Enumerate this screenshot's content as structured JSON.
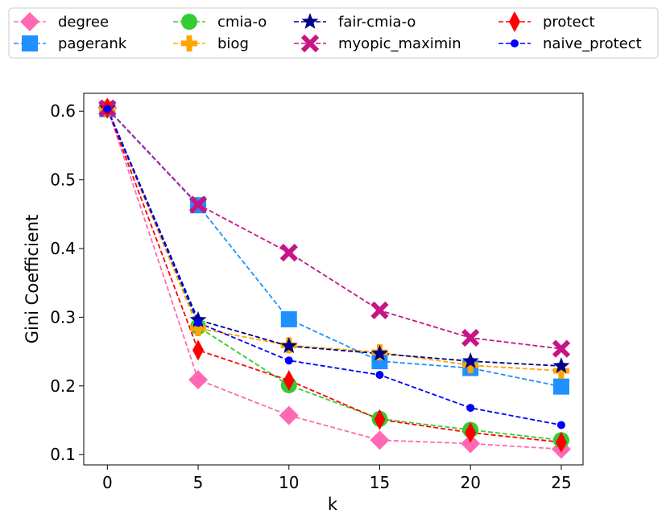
{
  "chart_data": {
    "type": "line",
    "xlabel": "k",
    "ylabel": "Gini Coefficient",
    "x": [
      0,
      5,
      10,
      15,
      20,
      25
    ],
    "xticks": [
      "0",
      "5",
      "10",
      "15",
      "20",
      "25"
    ],
    "yticks": [
      "0.1",
      "0.2",
      "0.3",
      "0.4",
      "0.5",
      "0.6"
    ],
    "xlim": [
      -1.3,
      26.2
    ],
    "ylim": [
      0.085,
      0.626
    ],
    "grid": false,
    "legend_position": "top, above plot, 4 columns",
    "series": [
      {
        "name": "degree",
        "color": "#ff69b4",
        "marker": "diamond",
        "values": [
          0.605,
          0.209,
          0.157,
          0.121,
          0.116,
          0.108
        ]
      },
      {
        "name": "pagerank",
        "color": "#1e90ff",
        "marker": "square",
        "values": [
          0.603,
          0.463,
          0.297,
          0.236,
          0.226,
          0.199
        ]
      },
      {
        "name": "cmia-o",
        "color": "#32cd32",
        "marker": "circle",
        "values": [
          0.604,
          0.286,
          0.201,
          0.152,
          0.136,
          0.121
        ]
      },
      {
        "name": "biog",
        "color": "#ffa500",
        "marker": "plus",
        "values": [
          0.604,
          0.284,
          0.259,
          0.249,
          0.23,
          0.222
        ]
      },
      {
        "name": "fair-cmia-o",
        "color": "#00008b",
        "marker": "star",
        "values": [
          0.604,
          0.296,
          0.258,
          0.247,
          0.236,
          0.229
        ]
      },
      {
        "name": "myopic_maximin",
        "color": "#c71585",
        "marker": "x",
        "values": [
          0.604,
          0.464,
          0.394,
          0.31,
          0.27,
          0.254
        ]
      },
      {
        "name": "protect",
        "color": "#ff0000",
        "marker": "thin-diamond",
        "values": [
          0.604,
          0.252,
          0.208,
          0.151,
          0.132,
          0.118
        ]
      },
      {
        "name": "naive_protect",
        "color": "#0000ff",
        "marker": "dot",
        "values": [
          0.603,
          0.292,
          0.237,
          0.216,
          0.168,
          0.143
        ]
      }
    ]
  }
}
